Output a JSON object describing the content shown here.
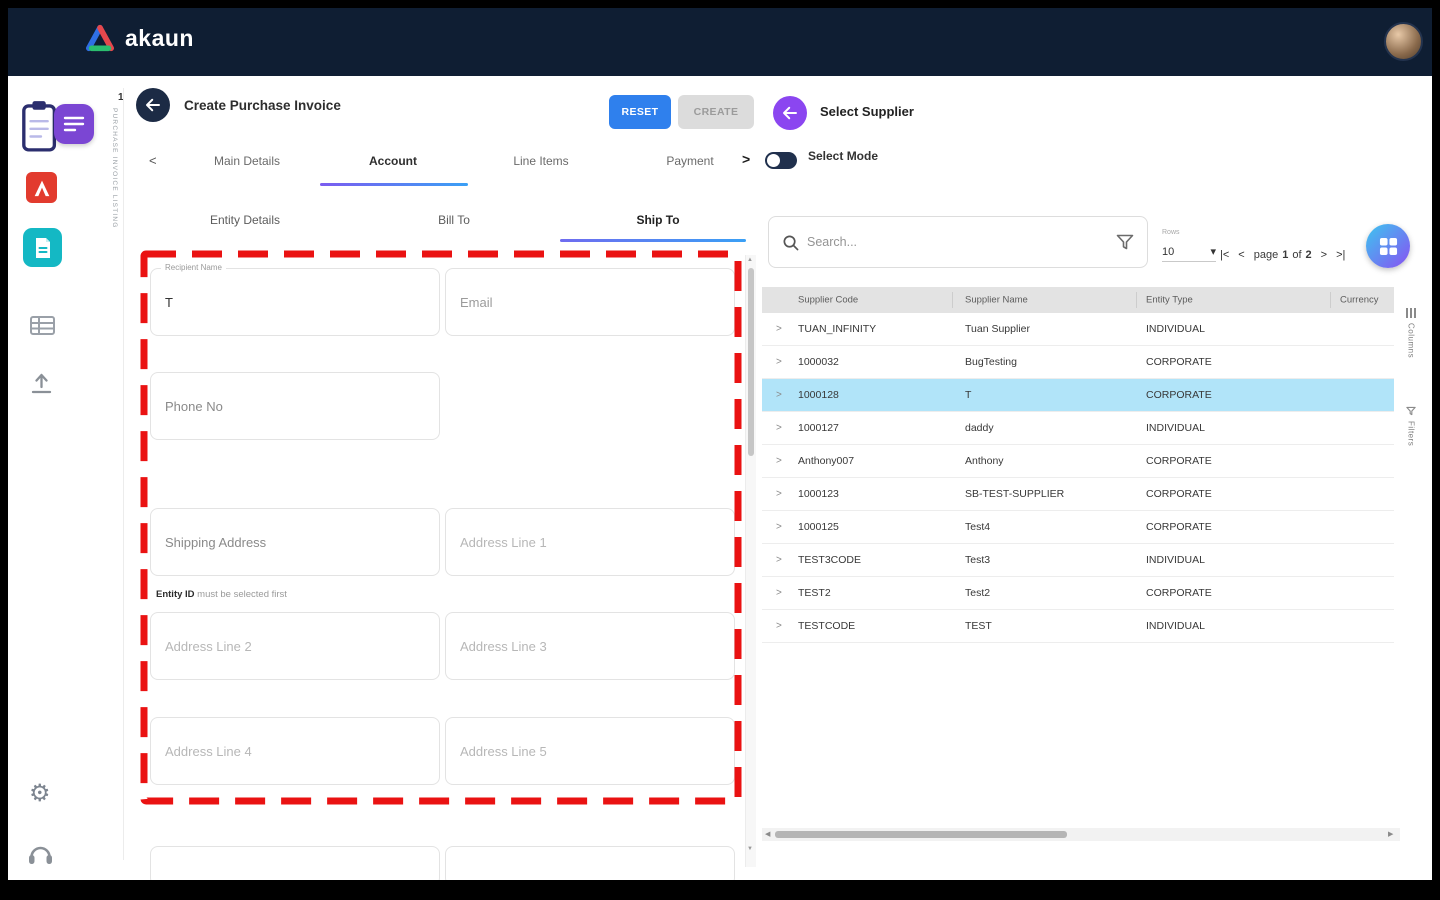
{
  "app": {
    "logo_text": "akaun"
  },
  "glyphs": {
    "gear": "⚙",
    "caret_down": "▾",
    "chevron_left": "<",
    "chevron_right": ">",
    "arrow_up": "▲",
    "arrow_down": "▼",
    "arrow_left": "◀",
    "arrow_right": "▶"
  },
  "colors": {
    "navbar": "#0f1e33",
    "accent_blue": "#2f80ed",
    "accent_purple": "#8b46f0",
    "selected_row": "#b1e4f9",
    "annotation_red": "#ea1212"
  },
  "invoice": {
    "badge": "1",
    "vertical_label": "PURCHASE INVOICE LISTING",
    "title": "Create Purchase Invoice",
    "actions": {
      "reset": "RESET",
      "create": "CREATE"
    },
    "tabs": [
      "Main Details",
      "Account",
      "Line Items",
      "Payment"
    ],
    "active_tab": "Account",
    "subtabs": [
      "Entity Details",
      "Bill To",
      "Ship To"
    ],
    "active_subtab": "Ship To",
    "fields": {
      "recipient": {
        "label": "Recipient Name",
        "value": "T"
      },
      "email_ph": "Email",
      "phone_ph": "Phone No",
      "shipping_ph": "Shipping Address",
      "a1_ph": "Address Line 1",
      "a2_ph": "Address Line 2",
      "a3_ph": "Address Line 3",
      "a4_ph": "Address Line 4",
      "a5_ph": "Address Line 5"
    },
    "helper": {
      "bold": "Entity ID",
      "rest": " must be selected first"
    }
  },
  "supplier": {
    "title": "Select Supplier",
    "select_mode": "Select Mode",
    "search_placeholder": "Search...",
    "rows_label": "Rows",
    "rows_value": "10",
    "pagination": {
      "first": "|<",
      "prev": "<",
      "page_word": "page",
      "page": "1",
      "of_word": "of",
      "total": "2",
      "next": ">",
      "last": ">|"
    },
    "columns": [
      "Supplier Code",
      "Supplier Name",
      "Entity Type",
      "Currency"
    ],
    "selected_row_index": 2,
    "rows": [
      {
        "code": "TUAN_INFINITY",
        "name": "Tuan Supplier",
        "type": "INDIVIDUAL"
      },
      {
        "code": "1000032",
        "name": "BugTesting",
        "type": "CORPORATE"
      },
      {
        "code": "1000128",
        "name": "T",
        "type": "CORPORATE"
      },
      {
        "code": "1000127",
        "name": "daddy",
        "type": "INDIVIDUAL"
      },
      {
        "code": "Anthony007",
        "name": "Anthony",
        "type": "CORPORATE"
      },
      {
        "code": "1000123",
        "name": "SB-TEST-SUPPLIER",
        "type": "CORPORATE"
      },
      {
        "code": "1000125",
        "name": "Test4",
        "type": "CORPORATE"
      },
      {
        "code": "TEST3CODE",
        "name": "Test3",
        "type": "INDIVIDUAL"
      },
      {
        "code": "TEST2",
        "name": "Test2",
        "type": "CORPORATE"
      },
      {
        "code": "TESTCODE",
        "name": "TEST",
        "type": "INDIVIDUAL"
      }
    ],
    "side_tabs": [
      "Columns",
      "Filters"
    ]
  }
}
